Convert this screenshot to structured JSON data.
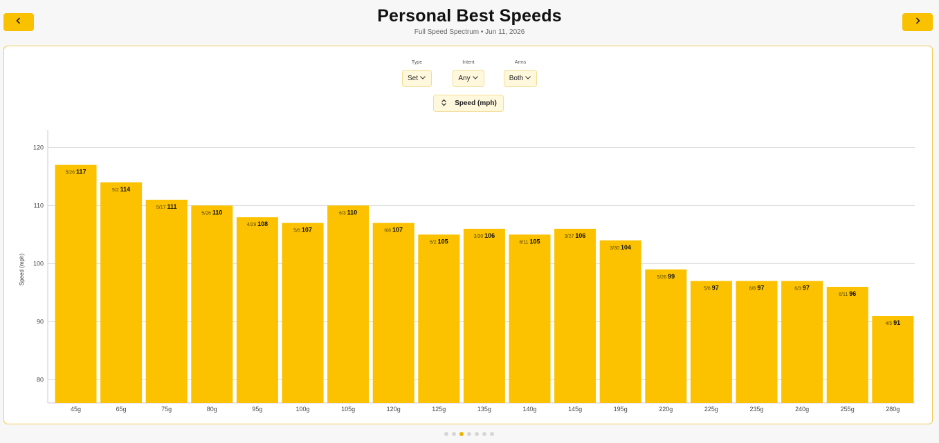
{
  "header": {
    "title": "Personal Best Speeds",
    "subtitle": "Full Speed Spectrum • Jun 11, 2026"
  },
  "nav": {
    "prev_icon": "chevron-left-icon",
    "next_icon": "chevron-right-icon"
  },
  "filters": {
    "type": {
      "label": "Type",
      "value": "Set"
    },
    "intent": {
      "label": "Intent",
      "value": "Any"
    },
    "arms": {
      "label": "Arms",
      "value": "Both"
    }
  },
  "metric": {
    "label": "Speed (mph)",
    "icon": "sort-icon"
  },
  "pagination": {
    "count": 7,
    "active_index": 2
  },
  "colors": {
    "accent": "#f9c100",
    "bar": "#fcc200",
    "border": "#f0cc55"
  },
  "chart_data": {
    "type": "bar",
    "ylabel": "Speed (mph)",
    "ylim": [
      76,
      123
    ],
    "yticks": [
      80,
      90,
      100,
      110,
      120
    ],
    "grid": true,
    "categories": [
      "45g",
      "65g",
      "75g",
      "80g",
      "95g",
      "100g",
      "105g",
      "120g",
      "125g",
      "135g",
      "140g",
      "145g",
      "195g",
      "220g",
      "225g",
      "235g",
      "240g",
      "255g",
      "280g"
    ],
    "values": [
      117,
      114,
      111,
      110,
      108,
      107,
      110,
      107,
      105,
      106,
      105,
      106,
      104,
      99,
      97,
      97,
      97,
      96,
      91
    ],
    "dates": [
      "5/26",
      "5/2",
      "5/17",
      "5/26",
      "4/29",
      "5/6",
      "6/3",
      "6/8",
      "5/2",
      "3/30",
      "6/11",
      "3/27",
      "3/30",
      "5/26",
      "5/6",
      "6/8",
      "6/3",
      "6/11",
      "4/5"
    ]
  }
}
